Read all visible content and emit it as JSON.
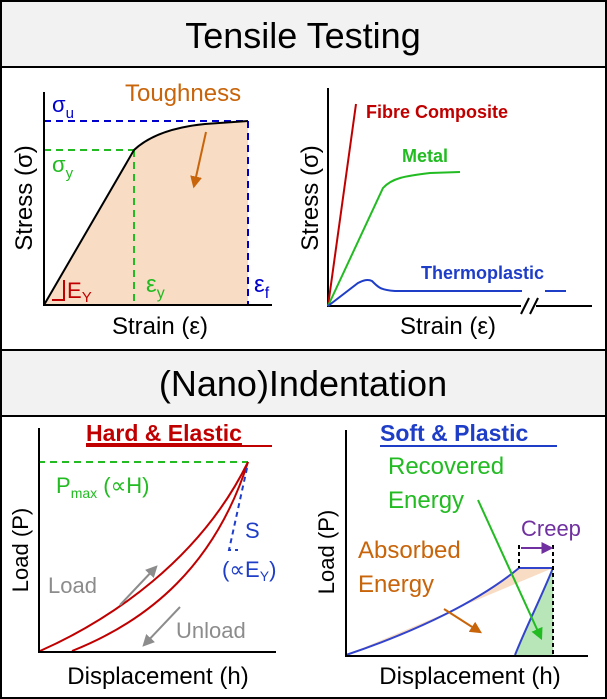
{
  "headers": {
    "tensile": "Tensile Testing",
    "indentation": "(Nano)Indentation"
  },
  "panel_tensile_left": {
    "y_axis": "Stress (σ)",
    "x_axis": "Strain (ε)",
    "sigma_u": "σ",
    "sigma_u_sub": "u",
    "sigma_y": "σ",
    "sigma_y_sub": "y",
    "toughness": "Toughness",
    "modulus": "E",
    "modulus_sub": "Y",
    "eps_y": "ε",
    "eps_y_sub": "y",
    "eps_f": "ε",
    "eps_f_sub": "f"
  },
  "panel_tensile_right": {
    "y_axis": "Stress (σ)",
    "x_axis": "Strain (ε)",
    "fibre": "Fibre Composite",
    "metal": "Metal",
    "thermoplastic": "Thermoplastic"
  },
  "panel_indent_left": {
    "title": "Hard & Elastic",
    "y_axis": "Load (P)",
    "x_axis": "Displacement (h)",
    "pmax": "P",
    "pmax_sub": "max",
    "pmax_rest": " (∝H)",
    "stiffness": "S",
    "stiffness_note": "(∝E",
    "stiffness_note_sub": "Y",
    "stiffness_note_end": ")",
    "load": "Load",
    "unload": "Unload"
  },
  "panel_indent_right": {
    "title": "Soft & Plastic",
    "y_axis": "Load (P)",
    "x_axis": "Displacement (h)",
    "recovered_1": "Recovered",
    "recovered_2": "Energy",
    "absorbed_1": "Absorbed",
    "absorbed_2": "Energy",
    "creep": "Creep"
  },
  "colors": {
    "header_bg": "#f2f2f2",
    "axis": "#000000",
    "black_curve": "#000000",
    "fill_orange": "#f8dcc4",
    "dashed_blue": "#0000cc",
    "dashed_green": "#22bb22",
    "red_text": "#c00000",
    "green_text": "#22bb22",
    "blue_text": "#1f3ec8",
    "orange_text": "#c8640a",
    "gray_text": "#8c8c8c",
    "purple": "#7030a0",
    "red_curve": "#c00000",
    "blue_curve": "#3344cc",
    "green_fill": "#b8e6b8"
  }
}
